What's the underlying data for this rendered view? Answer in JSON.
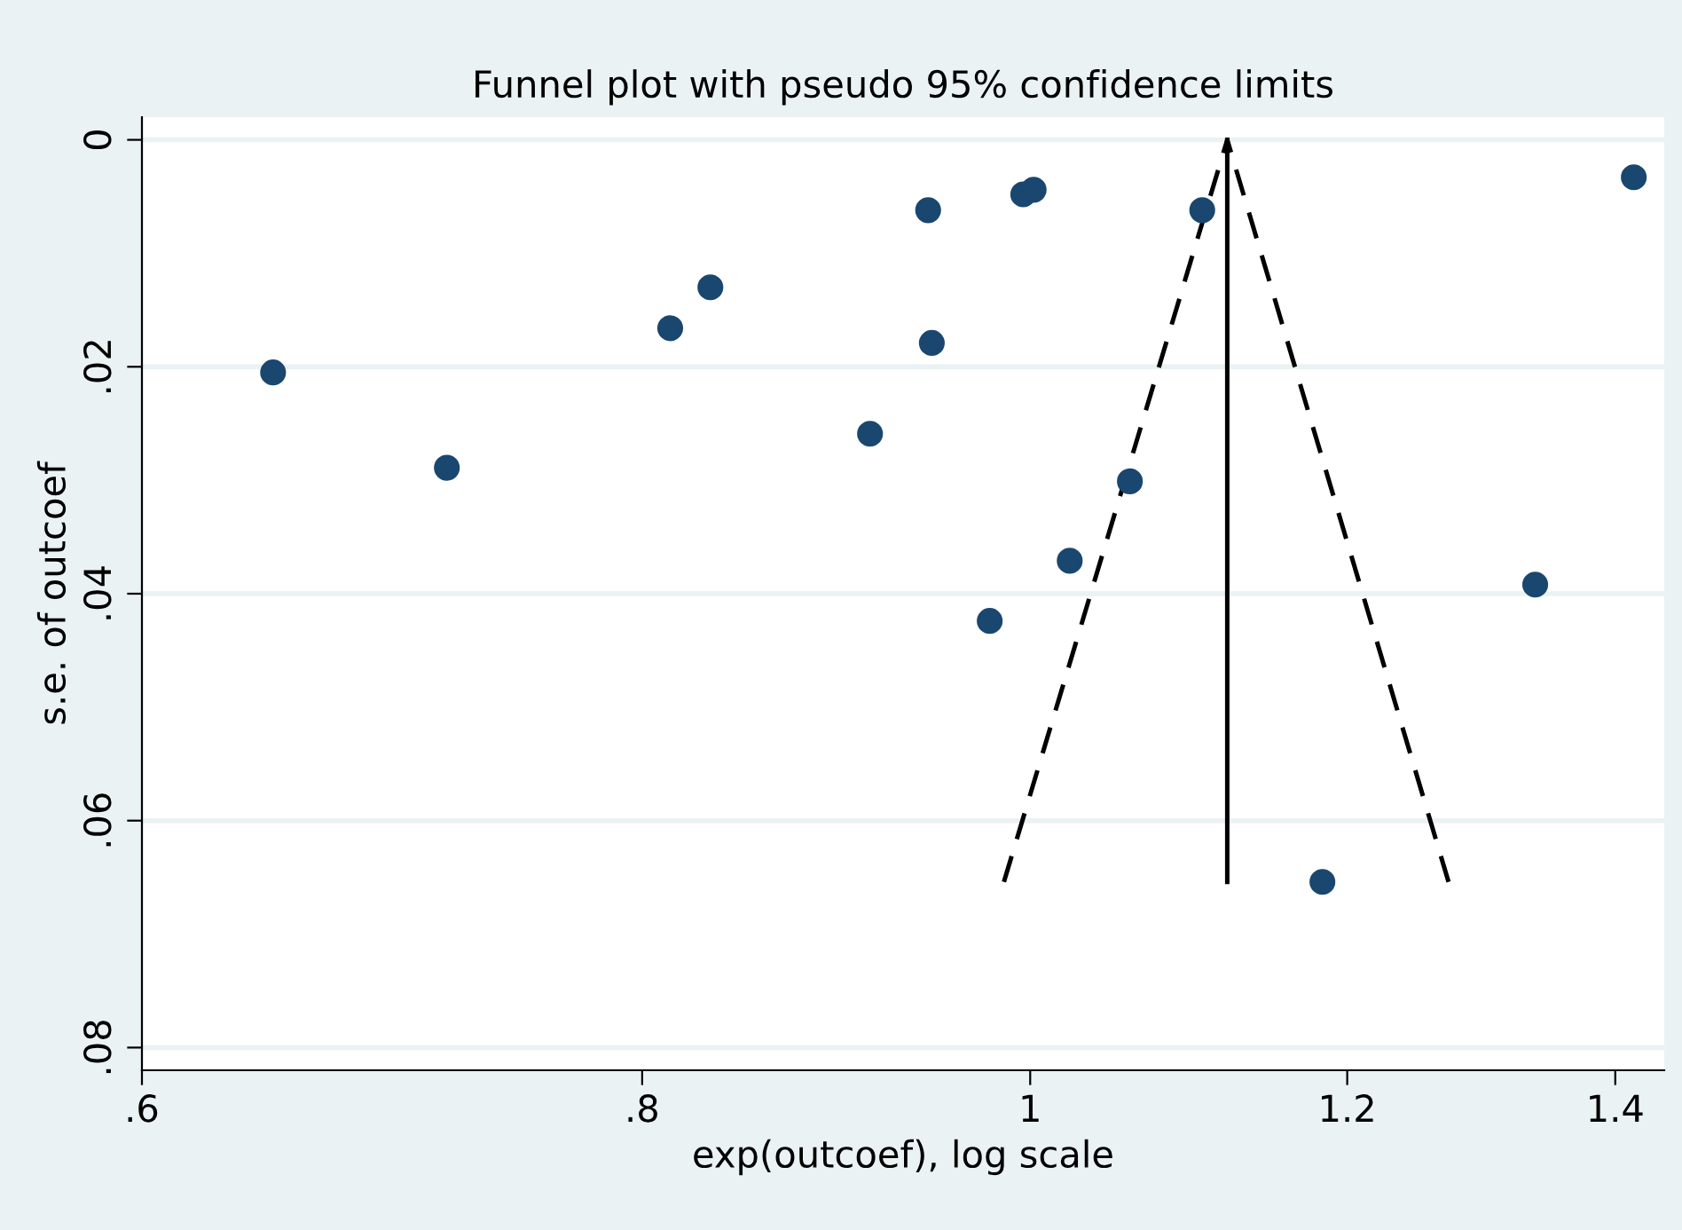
{
  "chart_data": {
    "type": "scatter",
    "title": "Funnel plot with pseudo 95% confidence limits",
    "xlabel": "exp(outcoef), log scale",
    "ylabel": "s.e. of outcoef",
    "log": "x",
    "grid": "y",
    "legend": false,
    "marker": "circle",
    "xlim": [
      0.6,
      1.44
    ],
    "xticks": [
      {
        "value": 0.6,
        "label": ".6"
      },
      {
        "value": 0.8,
        "label": ".8"
      },
      1,
      1.2,
      1.4
    ],
    "ylim": [
      0.082,
      -0.002
    ],
    "yticks": [
      0,
      {
        "value": 0.02,
        "label": ".02"
      },
      {
        "value": 0.04,
        "label": ".04"
      },
      {
        "value": 0.06,
        "label": ".06"
      },
      {
        "value": 0.08,
        "label": ".08"
      }
    ],
    "series": [
      {
        "color": "#1a476f",
        "x": [
          0.647,
          0.715,
          0.813,
          0.832,
          0.912,
          0.943,
          0.945,
          0.996,
          1.002,
          0.977,
          1.023,
          1.059,
          1.104,
          1.183,
          1.337,
          1.415
        ],
        "values": [
          0.0205,
          0.0289,
          0.0166,
          0.013,
          0.0259,
          0.0062,
          0.0179,
          0.0048,
          0.0044,
          0.0424,
          0.0371,
          0.0301,
          0.0062,
          0.0654,
          0.0392,
          0.0033
        ]
      },
      {
        "type": "line",
        "color": "#000000",
        "line_style": "solid",
        "marker": "none",
        "x": [
          1.12,
          1.12
        ],
        "values": [
          0,
          0.0654
        ]
      },
      {
        "type": "line",
        "color": "#000000",
        "line_style": "dashed",
        "marker": "none",
        "x": [
          0.985,
          1.12,
          1.272
        ],
        "values": [
          0.0654,
          0,
          0.0654
        ]
      }
    ]
  }
}
